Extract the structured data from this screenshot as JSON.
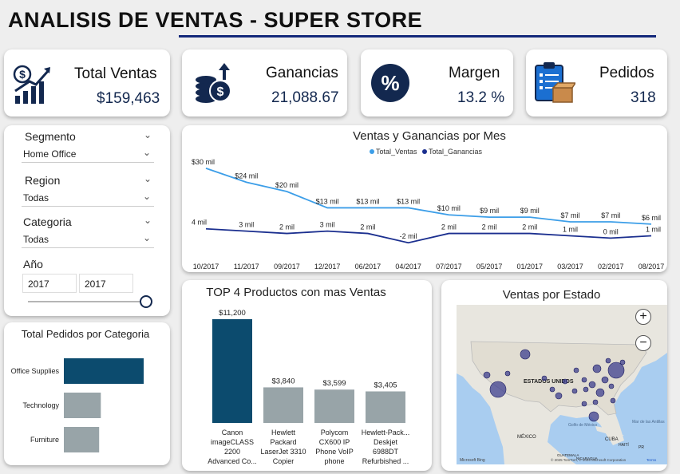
{
  "header": {
    "title": "ANALISIS DE VENTAS - SUPER STORE"
  },
  "kpis": {
    "ventas": {
      "label": "Total Ventas",
      "value": "$159,463"
    },
    "ganancias": {
      "label": "Ganancias",
      "value": "21,088.67"
    },
    "margen": {
      "label": "Margen",
      "value": "13.2 %"
    },
    "pedidos": {
      "label": "Pedidos",
      "value": "318"
    }
  },
  "filters": {
    "segmento": {
      "label": "Segmento",
      "value": "Home Office"
    },
    "region": {
      "label": "Region",
      "value": "Todas"
    },
    "categoria": {
      "label": "Categoria",
      "value": "Todas"
    },
    "anio": {
      "label": "Año",
      "from": "2017",
      "to": "2017"
    }
  },
  "colors": {
    "ventas_line": "#3c9ee8",
    "ganancias_line": "#1b2f8f",
    "bar_top": "#0c4b6e",
    "bar_other": "#98a4a8",
    "accent": "#13284f"
  },
  "chart_data": [
    {
      "type": "line",
      "title": "Ventas y Ganancias por Mes",
      "legend_position": "top-center",
      "categories": [
        "10/2017",
        "11/2017",
        "09/2017",
        "12/2017",
        "06/2017",
        "04/2017",
        "07/2017",
        "05/2017",
        "01/2017",
        "03/2017",
        "02/2017",
        "08/2017"
      ],
      "series": [
        {
          "name": "Total_Ventas",
          "values": [
            30,
            24,
            20,
            13,
            13,
            13,
            10,
            9,
            9,
            7,
            7,
            6
          ],
          "labels": [
            "$30 mil",
            "$24 mil",
            "$20 mil",
            "$13 mil",
            "$13 mil",
            "$13 mil",
            "$10 mil",
            "$9 mil",
            "$9 mil",
            "$7 mil",
            "$7 mil",
            "$6 mil"
          ]
        },
        {
          "name": "Total_Ganancias",
          "values": [
            4,
            3,
            2,
            3,
            2,
            -2,
            2,
            2,
            2,
            1,
            0,
            1
          ],
          "labels": [
            "4 mil",
            "3 mil",
            "2 mil",
            "3 mil",
            "2 mil",
            "-2 mil",
            "2 mil",
            "2 mil",
            "2 mil",
            "1 mil",
            "0 mil",
            "1 mil"
          ]
        }
      ]
    },
    {
      "type": "bar",
      "title": "TOP 4 Productos con mas Ventas",
      "categories": [
        [
          "Canon",
          "imageCLASS",
          "2200",
          "Advanced Co..."
        ],
        [
          "Hewlett",
          "Packard",
          "LaserJet 3310",
          "Copier"
        ],
        [
          "Polycom",
          "CX600 IP",
          "Phone VoIP",
          "phone"
        ],
        [
          "Hewlett-Pack...",
          "Deskjet",
          "6988DT",
          "Refurbished ..."
        ]
      ],
      "values": [
        11200,
        3840,
        3599,
        3405
      ],
      "labels": [
        "$11,200",
        "$3,840",
        "$3,599",
        "$3,405"
      ]
    },
    {
      "type": "bar",
      "orientation": "horizontal",
      "title": "Total Pedidos por Categoria",
      "categories": [
        "Office Supplies",
        "Technology",
        "Furniture"
      ],
      "values": [
        190,
        88,
        84
      ]
    }
  ],
  "map": {
    "title": "Ventas por Estado",
    "country_label": "ESTADOS UNIDOS",
    "labels": [
      "MÉXICO",
      "CUBA",
      "Golfo de México",
      "HAITÍ",
      "PR",
      "Mar de las Antillas",
      "GUATEMALA",
      "NICARAGUA"
    ],
    "attribution": "© 2025 TomTom, © 2025 Microsoft Corporation",
    "terms": "Terms",
    "brand": "Microsoft Bing",
    "zoom_in": "+",
    "zoom_out": "−"
  }
}
